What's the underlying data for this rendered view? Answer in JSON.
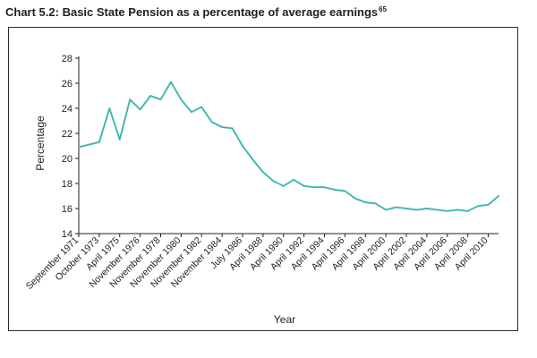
{
  "chart_data": {
    "type": "line",
    "title": "Chart 5.2: Basic State Pension as a percentage of average earnings",
    "title_footnote": "65",
    "xlabel": "Year",
    "ylabel": "Percentage",
    "ylim": [
      14,
      28
    ],
    "yticks": [
      14,
      16,
      18,
      20,
      22,
      24,
      26,
      28
    ],
    "grid": false,
    "legend": "none",
    "colors": {
      "line": "#3fb6b0",
      "axis": "#222222",
      "frame": "#2a2a2a"
    },
    "x_tick_labels": [
      "September 1971",
      "October 1973",
      "April 1975",
      "November 1976",
      "November 1978",
      "November 1980",
      "November 1982",
      "November 1984",
      "July 1986",
      "April 1988",
      "April 1990",
      "April 1992",
      "April 1994",
      "April 1996",
      "April 1998",
      "April 2000",
      "April 2002",
      "April 2004",
      "April 2006",
      "April 2008",
      "April 2010"
    ],
    "x_tick_index": [
      0,
      2,
      4,
      6,
      8,
      10,
      12,
      14,
      16,
      18,
      20,
      22,
      24,
      26,
      28,
      30,
      32,
      34,
      36,
      38,
      40
    ],
    "series": [
      {
        "name": "Basic State Pension as a percentage of average earnings",
        "values": [
          20.9,
          21.1,
          21.3,
          24.0,
          21.5,
          24.7,
          23.9,
          25.0,
          24.7,
          26.1,
          24.7,
          23.7,
          24.1,
          22.9,
          22.5,
          22.4,
          21.0,
          19.9,
          18.9,
          18.2,
          17.8,
          18.3,
          17.8,
          17.7,
          17.7,
          17.5,
          17.4,
          16.8,
          16.5,
          16.4,
          15.9,
          16.1,
          16.0,
          15.9,
          16.0,
          15.9,
          15.8,
          15.9,
          15.8,
          16.2,
          16.3,
          17.0
        ]
      }
    ]
  }
}
